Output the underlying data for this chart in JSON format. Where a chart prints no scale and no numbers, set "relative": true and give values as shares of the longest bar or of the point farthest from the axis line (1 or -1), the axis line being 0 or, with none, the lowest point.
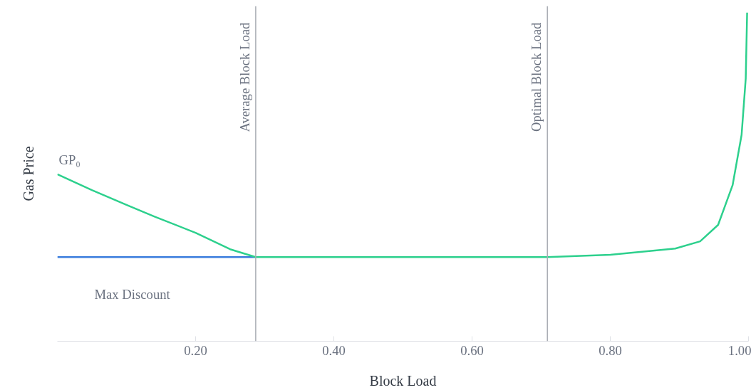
{
  "chart_data": {
    "type": "line",
    "relative": true,
    "xlabel": "Block Load",
    "ylabel": "Gas Price",
    "xlim": [
      0,
      1.0
    ],
    "xticks": [
      {
        "value": 0.2,
        "label": "0.20"
      },
      {
        "value": 0.4,
        "label": "0.40"
      },
      {
        "value": 0.6,
        "label": "0.60"
      },
      {
        "value": 0.8,
        "label": "0.80"
      },
      {
        "value": 1.0,
        "label": "1.00"
      }
    ],
    "series": [
      {
        "color": "#3b7ddd",
        "x": [
          0,
          0.287
        ],
        "values": [
          0.256,
          0.256
        ]
      },
      {
        "color": "#2dd08d",
        "x": [
          0,
          0.05,
          0.1,
          0.14,
          0.2,
          0.25,
          0.287,
          0.4,
          0.6,
          0.709,
          0.8,
          0.894,
          0.93,
          0.956,
          0.977,
          0.99,
          0.996,
          0.998
        ],
        "values": [
          0.508,
          0.46,
          0.415,
          0.38,
          0.33,
          0.28,
          0.256,
          0.256,
          0.256,
          0.256,
          0.263,
          0.282,
          0.304,
          0.354,
          0.475,
          0.628,
          0.8,
          1.0
        ]
      }
    ],
    "ref_lines": [
      {
        "axis": "x",
        "value": 0.287,
        "label": "Average Block Load",
        "color": "#a9adb4"
      },
      {
        "axis": "x",
        "value": 0.709,
        "label": "Optimal Block Load",
        "color": "#a9adb4"
      }
    ],
    "annotations": [
      {
        "text": "GP₀",
        "x": 0,
        "y": 0.508
      },
      "Max Discount"
    ],
    "grid": false,
    "marker": "none",
    "line_style": "solid"
  }
}
